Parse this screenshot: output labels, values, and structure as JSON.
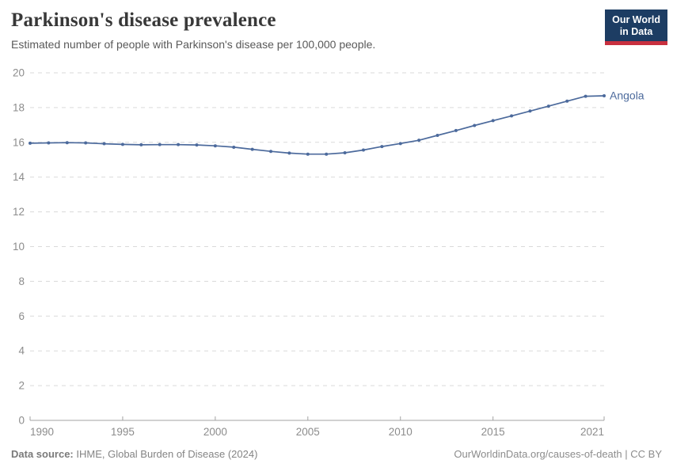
{
  "header": {
    "title": "Parkinson's disease prevalence",
    "subtitle": "Estimated number of people with Parkinson's disease per 100,000 people.",
    "logo_line1": "Our World",
    "logo_line2": "in Data"
  },
  "chart_data": {
    "type": "line",
    "title": "Parkinson's disease prevalence",
    "xlabel": "",
    "ylabel": "",
    "xlim": [
      1990,
      2021
    ],
    "ylim": [
      0,
      20
    ],
    "grid": "horizontal-dashed",
    "legend_position": "end-of-line-label",
    "x_ticks": [
      1990,
      1995,
      2000,
      2005,
      2010,
      2015,
      2021
    ],
    "y_ticks": [
      0,
      2,
      4,
      6,
      8,
      10,
      12,
      14,
      16,
      18,
      20
    ],
    "x": [
      1990,
      1991,
      1992,
      1993,
      1994,
      1995,
      1996,
      1997,
      1998,
      1999,
      2000,
      2001,
      2002,
      2003,
      2004,
      2005,
      2006,
      2007,
      2008,
      2009,
      2010,
      2011,
      2012,
      2013,
      2014,
      2015,
      2016,
      2017,
      2018,
      2019,
      2020,
      2021
    ],
    "series": [
      {
        "name": "Angola",
        "color": "#4c6a9c",
        "values": [
          15.95,
          15.97,
          15.98,
          15.97,
          15.92,
          15.88,
          15.86,
          15.87,
          15.87,
          15.85,
          15.8,
          15.72,
          15.6,
          15.48,
          15.38,
          15.32,
          15.32,
          15.4,
          15.56,
          15.76,
          15.93,
          16.12,
          16.4,
          16.68,
          16.97,
          17.25,
          17.52,
          17.8,
          18.08,
          18.37,
          18.65,
          18.68
        ]
      }
    ]
  },
  "colors": {
    "line": "#4c6a9c",
    "entity_label": "#4c6a9c",
    "gridline": "#dadada",
    "axis": "#a3a3a3",
    "tick_label": "#8c8c8c",
    "logo_bg": "#1d3d63",
    "logo_stripe": "#c8303f"
  },
  "footer": {
    "source_label": "Data source:",
    "source_text": "IHME, Global Burden of Disease (2024)",
    "url_text": "OurWorldinData.org/causes-of-death",
    "separator": "|",
    "license": "CC BY"
  }
}
